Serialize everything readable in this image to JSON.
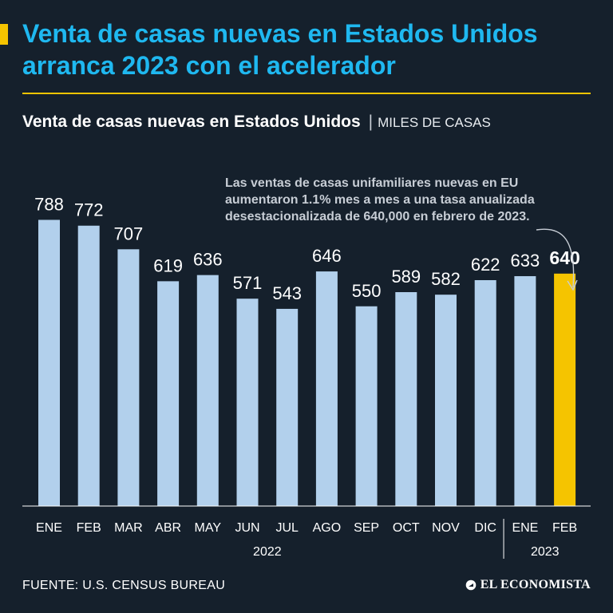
{
  "header": {
    "title": "Venta de casas nuevas en Estados Unidos arranca 2023 con el acelerador",
    "subtitle": "Venta de casas nuevas en Estados Unidos",
    "separator": "|",
    "unit": "MILES DE CASAS"
  },
  "annotation": "Las ventas de casas unifamiliares nuevas en EU aumentaron 1.1% mes a mes a una tasa anualizada desestacionalizada de 640,000 en febrero de 2023.",
  "footer": {
    "source": "FUENTE: U.S. CENSUS BUREAU",
    "logo": "EL ECONOMISTA"
  },
  "colors": {
    "background": "#15202c",
    "accent": "#f5c400",
    "title": "#1fb8f0",
    "bar": "#b2d0ec",
    "highlight": "#f5c400",
    "annotation": "#c7cdd5"
  },
  "chart_data": {
    "type": "bar",
    "categories": [
      "ENE",
      "FEB",
      "MAR",
      "ABR",
      "MAY",
      "JUN",
      "JUL",
      "AGO",
      "SEP",
      "OCT",
      "NOV",
      "DIC",
      "ENE",
      "FEB"
    ],
    "values": [
      788,
      772,
      707,
      619,
      636,
      571,
      543,
      646,
      550,
      589,
      582,
      622,
      633,
      640
    ],
    "year_groups": [
      {
        "label": "2022",
        "from": 0,
        "to": 11
      },
      {
        "label": "2023",
        "from": 12,
        "to": 13
      }
    ],
    "highlight_index": 13,
    "ylim": [
      0,
      800
    ],
    "grid": false
  }
}
